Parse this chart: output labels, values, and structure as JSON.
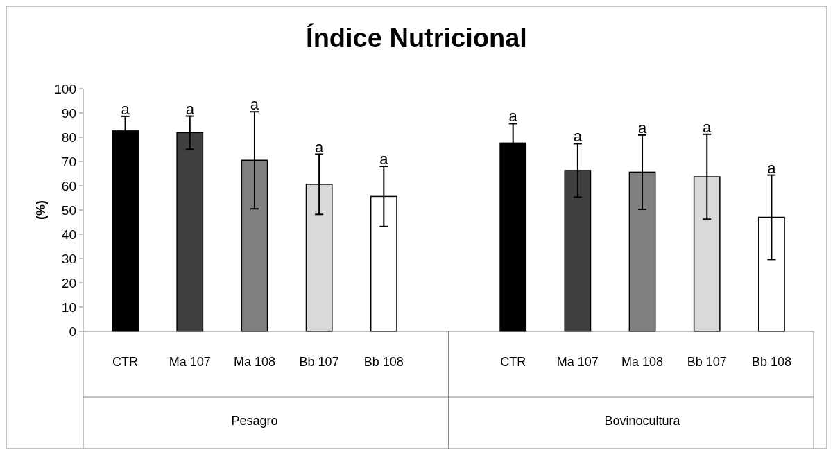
{
  "chart_data": {
    "type": "bar",
    "title": "Índice Nutricional",
    "ylabel": "(%)",
    "categories": [
      "CTR",
      "Ma 107",
      "Ma 108",
      "Bb 107",
      "Bb 108",
      null,
      "CTR",
      "Ma 107",
      "Ma 108",
      "Bb 107",
      "Bb 108"
    ],
    "values": [
      82.6,
      81.9,
      70.5,
      60.6,
      55.6,
      null,
      77.6,
      66.3,
      65.6,
      63.7,
      47.0
    ],
    "colors": [
      "#000000",
      "#404040",
      "#808080",
      "#d9d9d9",
      "#ffffff",
      null,
      "#000000",
      "#404040",
      "#808080",
      "#d9d9d9",
      "#ffffff"
    ],
    "errors": [
      6,
      6.8,
      20,
      12.4,
      12.4,
      null,
      8,
      11,
      15.3,
      17.5,
      17.4
    ],
    "value_labels": [
      "a",
      "a",
      "a",
      "a",
      "a",
      null,
      "a",
      "a",
      "a",
      "a",
      "a"
    ],
    "annotations": [
      "Pesagro",
      "Bovinocultura"
    ],
    "ylim": [
      0,
      100
    ],
    "yticks": [
      0,
      10,
      20,
      30,
      40,
      50,
      60,
      70,
      80,
      90,
      100
    ],
    "grid": false
  }
}
